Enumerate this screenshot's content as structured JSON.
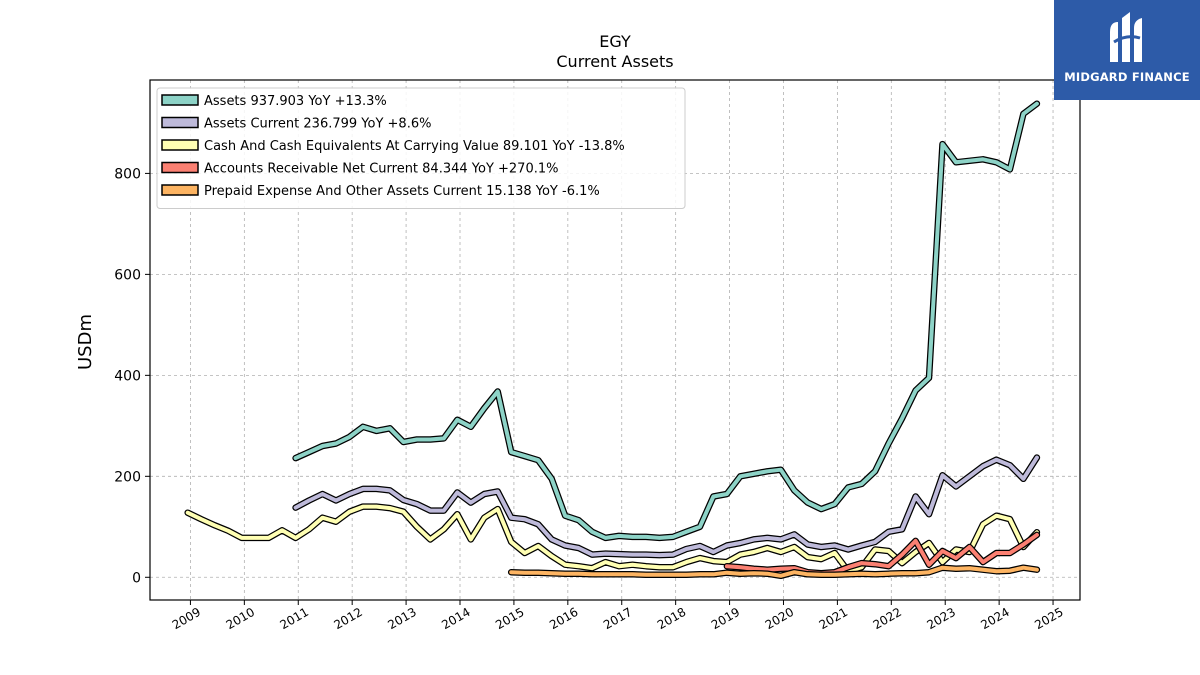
{
  "logo": {
    "brand": "MIDGARD FINANCE",
    "icon": "midgard-logo-icon"
  },
  "chart_data": {
    "type": "line",
    "title": "EGY",
    "subtitle": "Current  Assets",
    "ylabel": "USDm",
    "xlabel": "",
    "ylim": [
      -45,
      985
    ],
    "xlim": [
      2008.25,
      2025.5
    ],
    "yticks": [
      0,
      200,
      400,
      600,
      800
    ],
    "xticks": [
      "2009",
      "2010",
      "2011",
      "2012",
      "2013",
      "2014",
      "2015",
      "2016",
      "2017",
      "2018",
      "2019",
      "2020",
      "2021",
      "2022",
      "2023",
      "2024",
      "2025"
    ],
    "grid": true,
    "legend_position": "top-left",
    "series": [
      {
        "name": "Assets  937.903 YoY +13.3%",
        "color": "#8dd3c7",
        "points": [
          [
            2010.95,
            236
          ],
          [
            2011.2,
            248
          ],
          [
            2011.45,
            260
          ],
          [
            2011.7,
            265
          ],
          [
            2011.95,
            278
          ],
          [
            2012.2,
            298
          ],
          [
            2012.45,
            290
          ],
          [
            2012.7,
            295
          ],
          [
            2012.95,
            268
          ],
          [
            2013.2,
            273
          ],
          [
            2013.45,
            273
          ],
          [
            2013.7,
            275
          ],
          [
            2013.95,
            312
          ],
          [
            2014.2,
            298
          ],
          [
            2014.45,
            335
          ],
          [
            2014.7,
            368
          ],
          [
            2014.95,
            248
          ],
          [
            2015.2,
            240
          ],
          [
            2015.45,
            232
          ],
          [
            2015.7,
            195
          ],
          [
            2015.95,
            122
          ],
          [
            2016.2,
            113
          ],
          [
            2016.45,
            90
          ],
          [
            2016.7,
            78
          ],
          [
            2016.95,
            82
          ],
          [
            2017.2,
            80
          ],
          [
            2017.45,
            80
          ],
          [
            2017.7,
            78
          ],
          [
            2017.95,
            80
          ],
          [
            2018.2,
            90
          ],
          [
            2018.45,
            100
          ],
          [
            2018.7,
            160
          ],
          [
            2018.95,
            165
          ],
          [
            2019.2,
            200
          ],
          [
            2019.45,
            205
          ],
          [
            2019.7,
            210
          ],
          [
            2019.95,
            213
          ],
          [
            2020.2,
            172
          ],
          [
            2020.45,
            148
          ],
          [
            2020.7,
            135
          ],
          [
            2020.95,
            145
          ],
          [
            2021.2,
            178
          ],
          [
            2021.45,
            185
          ],
          [
            2021.7,
            210
          ],
          [
            2021.95,
            265
          ],
          [
            2022.2,
            315
          ],
          [
            2022.45,
            370
          ],
          [
            2022.7,
            395
          ],
          [
            2022.95,
            858
          ],
          [
            2023.2,
            822
          ],
          [
            2023.45,
            825
          ],
          [
            2023.7,
            828
          ],
          [
            2023.95,
            822
          ],
          [
            2024.2,
            808
          ],
          [
            2024.45,
            918
          ],
          [
            2024.7,
            938
          ]
        ]
      },
      {
        "name": "Assets Current  236.799 YoY +8.6%",
        "color": "#bebada",
        "points": [
          [
            2010.95,
            138
          ],
          [
            2011.2,
            152
          ],
          [
            2011.45,
            165
          ],
          [
            2011.7,
            152
          ],
          [
            2011.95,
            165
          ],
          [
            2012.2,
            175
          ],
          [
            2012.45,
            175
          ],
          [
            2012.7,
            172
          ],
          [
            2012.95,
            153
          ],
          [
            2013.2,
            145
          ],
          [
            2013.45,
            132
          ],
          [
            2013.7,
            132
          ],
          [
            2013.95,
            168
          ],
          [
            2014.2,
            148
          ],
          [
            2014.45,
            165
          ],
          [
            2014.7,
            170
          ],
          [
            2014.95,
            118
          ],
          [
            2015.2,
            115
          ],
          [
            2015.45,
            105
          ],
          [
            2015.7,
            75
          ],
          [
            2015.95,
            63
          ],
          [
            2016.2,
            58
          ],
          [
            2016.45,
            45
          ],
          [
            2016.7,
            47
          ],
          [
            2016.95,
            46
          ],
          [
            2017.2,
            45
          ],
          [
            2017.45,
            45
          ],
          [
            2017.7,
            44
          ],
          [
            2017.95,
            45
          ],
          [
            2018.2,
            56
          ],
          [
            2018.45,
            62
          ],
          [
            2018.7,
            50
          ],
          [
            2018.95,
            63
          ],
          [
            2019.2,
            68
          ],
          [
            2019.45,
            75
          ],
          [
            2019.7,
            78
          ],
          [
            2019.95,
            75
          ],
          [
            2020.2,
            85
          ],
          [
            2020.45,
            65
          ],
          [
            2020.7,
            60
          ],
          [
            2020.95,
            63
          ],
          [
            2021.2,
            55
          ],
          [
            2021.45,
            63
          ],
          [
            2021.7,
            70
          ],
          [
            2021.95,
            90
          ],
          [
            2022.2,
            95
          ],
          [
            2022.45,
            160
          ],
          [
            2022.7,
            125
          ],
          [
            2022.95,
            202
          ],
          [
            2023.2,
            180
          ],
          [
            2023.45,
            200
          ],
          [
            2023.7,
            220
          ],
          [
            2023.95,
            233
          ],
          [
            2024.2,
            222
          ],
          [
            2024.45,
            195
          ],
          [
            2024.7,
            237
          ]
        ]
      },
      {
        "name": "Cash And Cash Equivalents At Carrying Value  89.101 YoY -13.8%",
        "color": "#ffffb3",
        "points": [
          [
            2008.95,
            128
          ],
          [
            2009.2,
            115
          ],
          [
            2009.45,
            103
          ],
          [
            2009.7,
            92
          ],
          [
            2009.95,
            78
          ],
          [
            2010.2,
            78
          ],
          [
            2010.45,
            78
          ],
          [
            2010.7,
            93
          ],
          [
            2010.95,
            78
          ],
          [
            2011.2,
            95
          ],
          [
            2011.45,
            118
          ],
          [
            2011.7,
            110
          ],
          [
            2011.95,
            130
          ],
          [
            2012.2,
            140
          ],
          [
            2012.45,
            140
          ],
          [
            2012.7,
            137
          ],
          [
            2012.95,
            130
          ],
          [
            2013.2,
            100
          ],
          [
            2013.45,
            75
          ],
          [
            2013.7,
            95
          ],
          [
            2013.95,
            125
          ],
          [
            2014.2,
            75
          ],
          [
            2014.45,
            118
          ],
          [
            2014.7,
            135
          ],
          [
            2014.95,
            70
          ],
          [
            2015.2,
            48
          ],
          [
            2015.45,
            62
          ],
          [
            2015.7,
            42
          ],
          [
            2015.95,
            25
          ],
          [
            2016.2,
            22
          ],
          [
            2016.45,
            18
          ],
          [
            2016.7,
            30
          ],
          [
            2016.95,
            22
          ],
          [
            2017.2,
            25
          ],
          [
            2017.45,
            22
          ],
          [
            2017.7,
            20
          ],
          [
            2017.95,
            20
          ],
          [
            2018.2,
            30
          ],
          [
            2018.45,
            38
          ],
          [
            2018.7,
            32
          ],
          [
            2018.95,
            30
          ],
          [
            2019.2,
            45
          ],
          [
            2019.45,
            50
          ],
          [
            2019.7,
            58
          ],
          [
            2019.95,
            50
          ],
          [
            2020.2,
            60
          ],
          [
            2020.45,
            40
          ],
          [
            2020.7,
            36
          ],
          [
            2020.95,
            48
          ],
          [
            2021.2,
            12
          ],
          [
            2021.45,
            20
          ],
          [
            2021.7,
            55
          ],
          [
            2021.95,
            52
          ],
          [
            2022.2,
            28
          ],
          [
            2022.45,
            50
          ],
          [
            2022.7,
            68
          ],
          [
            2022.95,
            30
          ],
          [
            2023.2,
            55
          ],
          [
            2023.45,
            50
          ],
          [
            2023.7,
            105
          ],
          [
            2023.95,
            122
          ],
          [
            2024.2,
            115
          ],
          [
            2024.45,
            60
          ],
          [
            2024.7,
            89
          ]
        ]
      },
      {
        "name": "Accounts Receivable Net Current  84.344 YoY +270.1%",
        "color": "#fb8072",
        "points": [
          [
            2018.95,
            22
          ],
          [
            2019.2,
            20
          ],
          [
            2019.45,
            17
          ],
          [
            2019.7,
            15
          ],
          [
            2019.95,
            17
          ],
          [
            2020.2,
            18
          ],
          [
            2020.45,
            10
          ],
          [
            2020.7,
            8
          ],
          [
            2020.95,
            10
          ],
          [
            2021.2,
            20
          ],
          [
            2021.45,
            28
          ],
          [
            2021.7,
            26
          ],
          [
            2021.95,
            22
          ],
          [
            2022.2,
            45
          ],
          [
            2022.45,
            72
          ],
          [
            2022.7,
            25
          ],
          [
            2022.95,
            52
          ],
          [
            2023.2,
            38
          ],
          [
            2023.45,
            60
          ],
          [
            2023.7,
            30
          ],
          [
            2023.95,
            48
          ],
          [
            2024.2,
            48
          ],
          [
            2024.45,
            65
          ],
          [
            2024.7,
            84
          ]
        ]
      },
      {
        "name": "Prepaid Expense And Other Assets Current  15.138 YoY -6.1%",
        "color": "#fdb462",
        "points": [
          [
            2014.95,
            10
          ],
          [
            2015.2,
            9
          ],
          [
            2015.45,
            9
          ],
          [
            2015.7,
            8
          ],
          [
            2015.95,
            7
          ],
          [
            2016.2,
            7
          ],
          [
            2016.45,
            6
          ],
          [
            2016.7,
            6
          ],
          [
            2016.95,
            6
          ],
          [
            2017.2,
            6
          ],
          [
            2017.45,
            5
          ],
          [
            2017.7,
            5
          ],
          [
            2017.95,
            5
          ],
          [
            2018.2,
            5
          ],
          [
            2018.45,
            6
          ],
          [
            2018.7,
            6
          ],
          [
            2018.95,
            9
          ],
          [
            2019.2,
            7
          ],
          [
            2019.45,
            8
          ],
          [
            2019.7,
            7
          ],
          [
            2019.95,
            3
          ],
          [
            2020.2,
            10
          ],
          [
            2020.45,
            6
          ],
          [
            2020.7,
            5
          ],
          [
            2020.95,
            5
          ],
          [
            2021.2,
            6
          ],
          [
            2021.45,
            7
          ],
          [
            2021.7,
            6
          ],
          [
            2021.95,
            7
          ],
          [
            2022.2,
            8
          ],
          [
            2022.45,
            8
          ],
          [
            2022.7,
            10
          ],
          [
            2022.95,
            19
          ],
          [
            2023.2,
            17
          ],
          [
            2023.45,
            18
          ],
          [
            2023.7,
            15
          ],
          [
            2023.95,
            12
          ],
          [
            2024.2,
            13
          ],
          [
            2024.45,
            19
          ],
          [
            2024.7,
            15
          ]
        ]
      }
    ]
  }
}
